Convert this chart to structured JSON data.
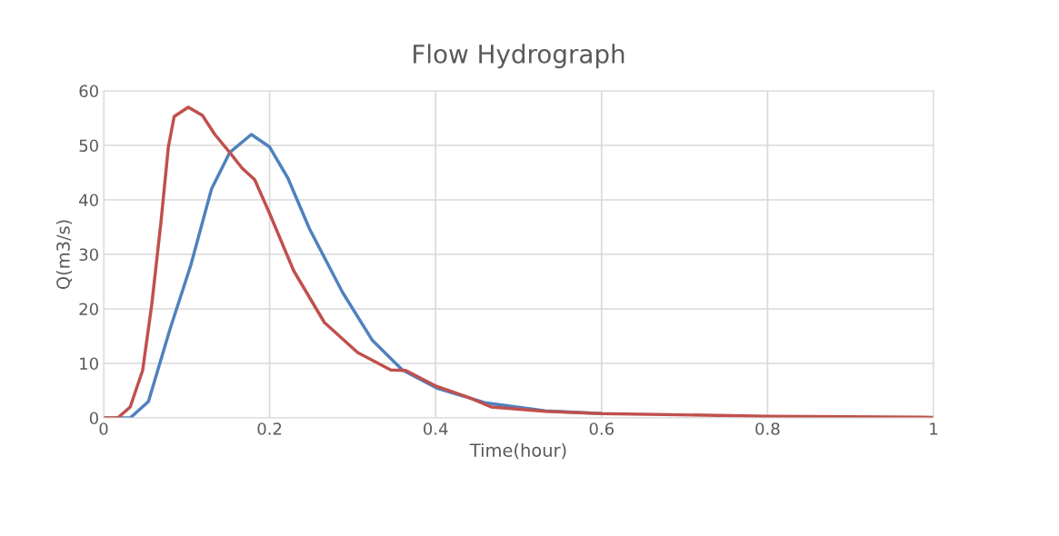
{
  "chart_data": {
    "type": "line",
    "title": "Flow Hydrograph",
    "xlabel": "Time(hour)",
    "ylabel": "Q(m3/s)",
    "xlim": [
      0,
      1
    ],
    "xticks": [
      0,
      0.2,
      0.4,
      0.6,
      0.8,
      1
    ],
    "ylim": [
      0,
      60
    ],
    "yticks": [
      0,
      10,
      20,
      30,
      40,
      50,
      60
    ],
    "grid": true,
    "marker": "none",
    "line_style": "solid",
    "series": [
      {
        "color": "#4f81bd",
        "x": [
          0,
          0.032,
          0.054,
          0.08,
          0.105,
          0.13,
          0.152,
          0.178,
          0.2,
          0.222,
          0.248,
          0.288,
          0.324,
          0.36,
          0.401,
          0.459,
          0.532,
          0.6
        ],
        "values": [
          0,
          0,
          3,
          16.3,
          28,
          42,
          48.7,
          52,
          49.7,
          44,
          34.7,
          23,
          14.2,
          8.8,
          5.5,
          2.8,
          1.3,
          0.8
        ]
      },
      {
        "color": "#c0504d",
        "x": [
          0,
          0.017,
          0.032,
          0.047,
          0.058,
          0.069,
          0.078,
          0.085,
          0.102,
          0.119,
          0.134,
          0.152,
          0.167,
          0.182,
          0.2,
          0.229,
          0.266,
          0.306,
          0.346,
          0.364,
          0.401,
          0.441,
          0.467,
          0.532,
          0.6,
          0.8,
          1
        ],
        "values": [
          0,
          0,
          2,
          8.7,
          20.8,
          35.8,
          49.7,
          55.3,
          57,
          55.5,
          52,
          48.7,
          45.8,
          43.7,
          37.5,
          27,
          17.5,
          12,
          8.8,
          8.7,
          5.8,
          3.7,
          2,
          1.2,
          0.8,
          0.3,
          0.1
        ]
      }
    ]
  }
}
